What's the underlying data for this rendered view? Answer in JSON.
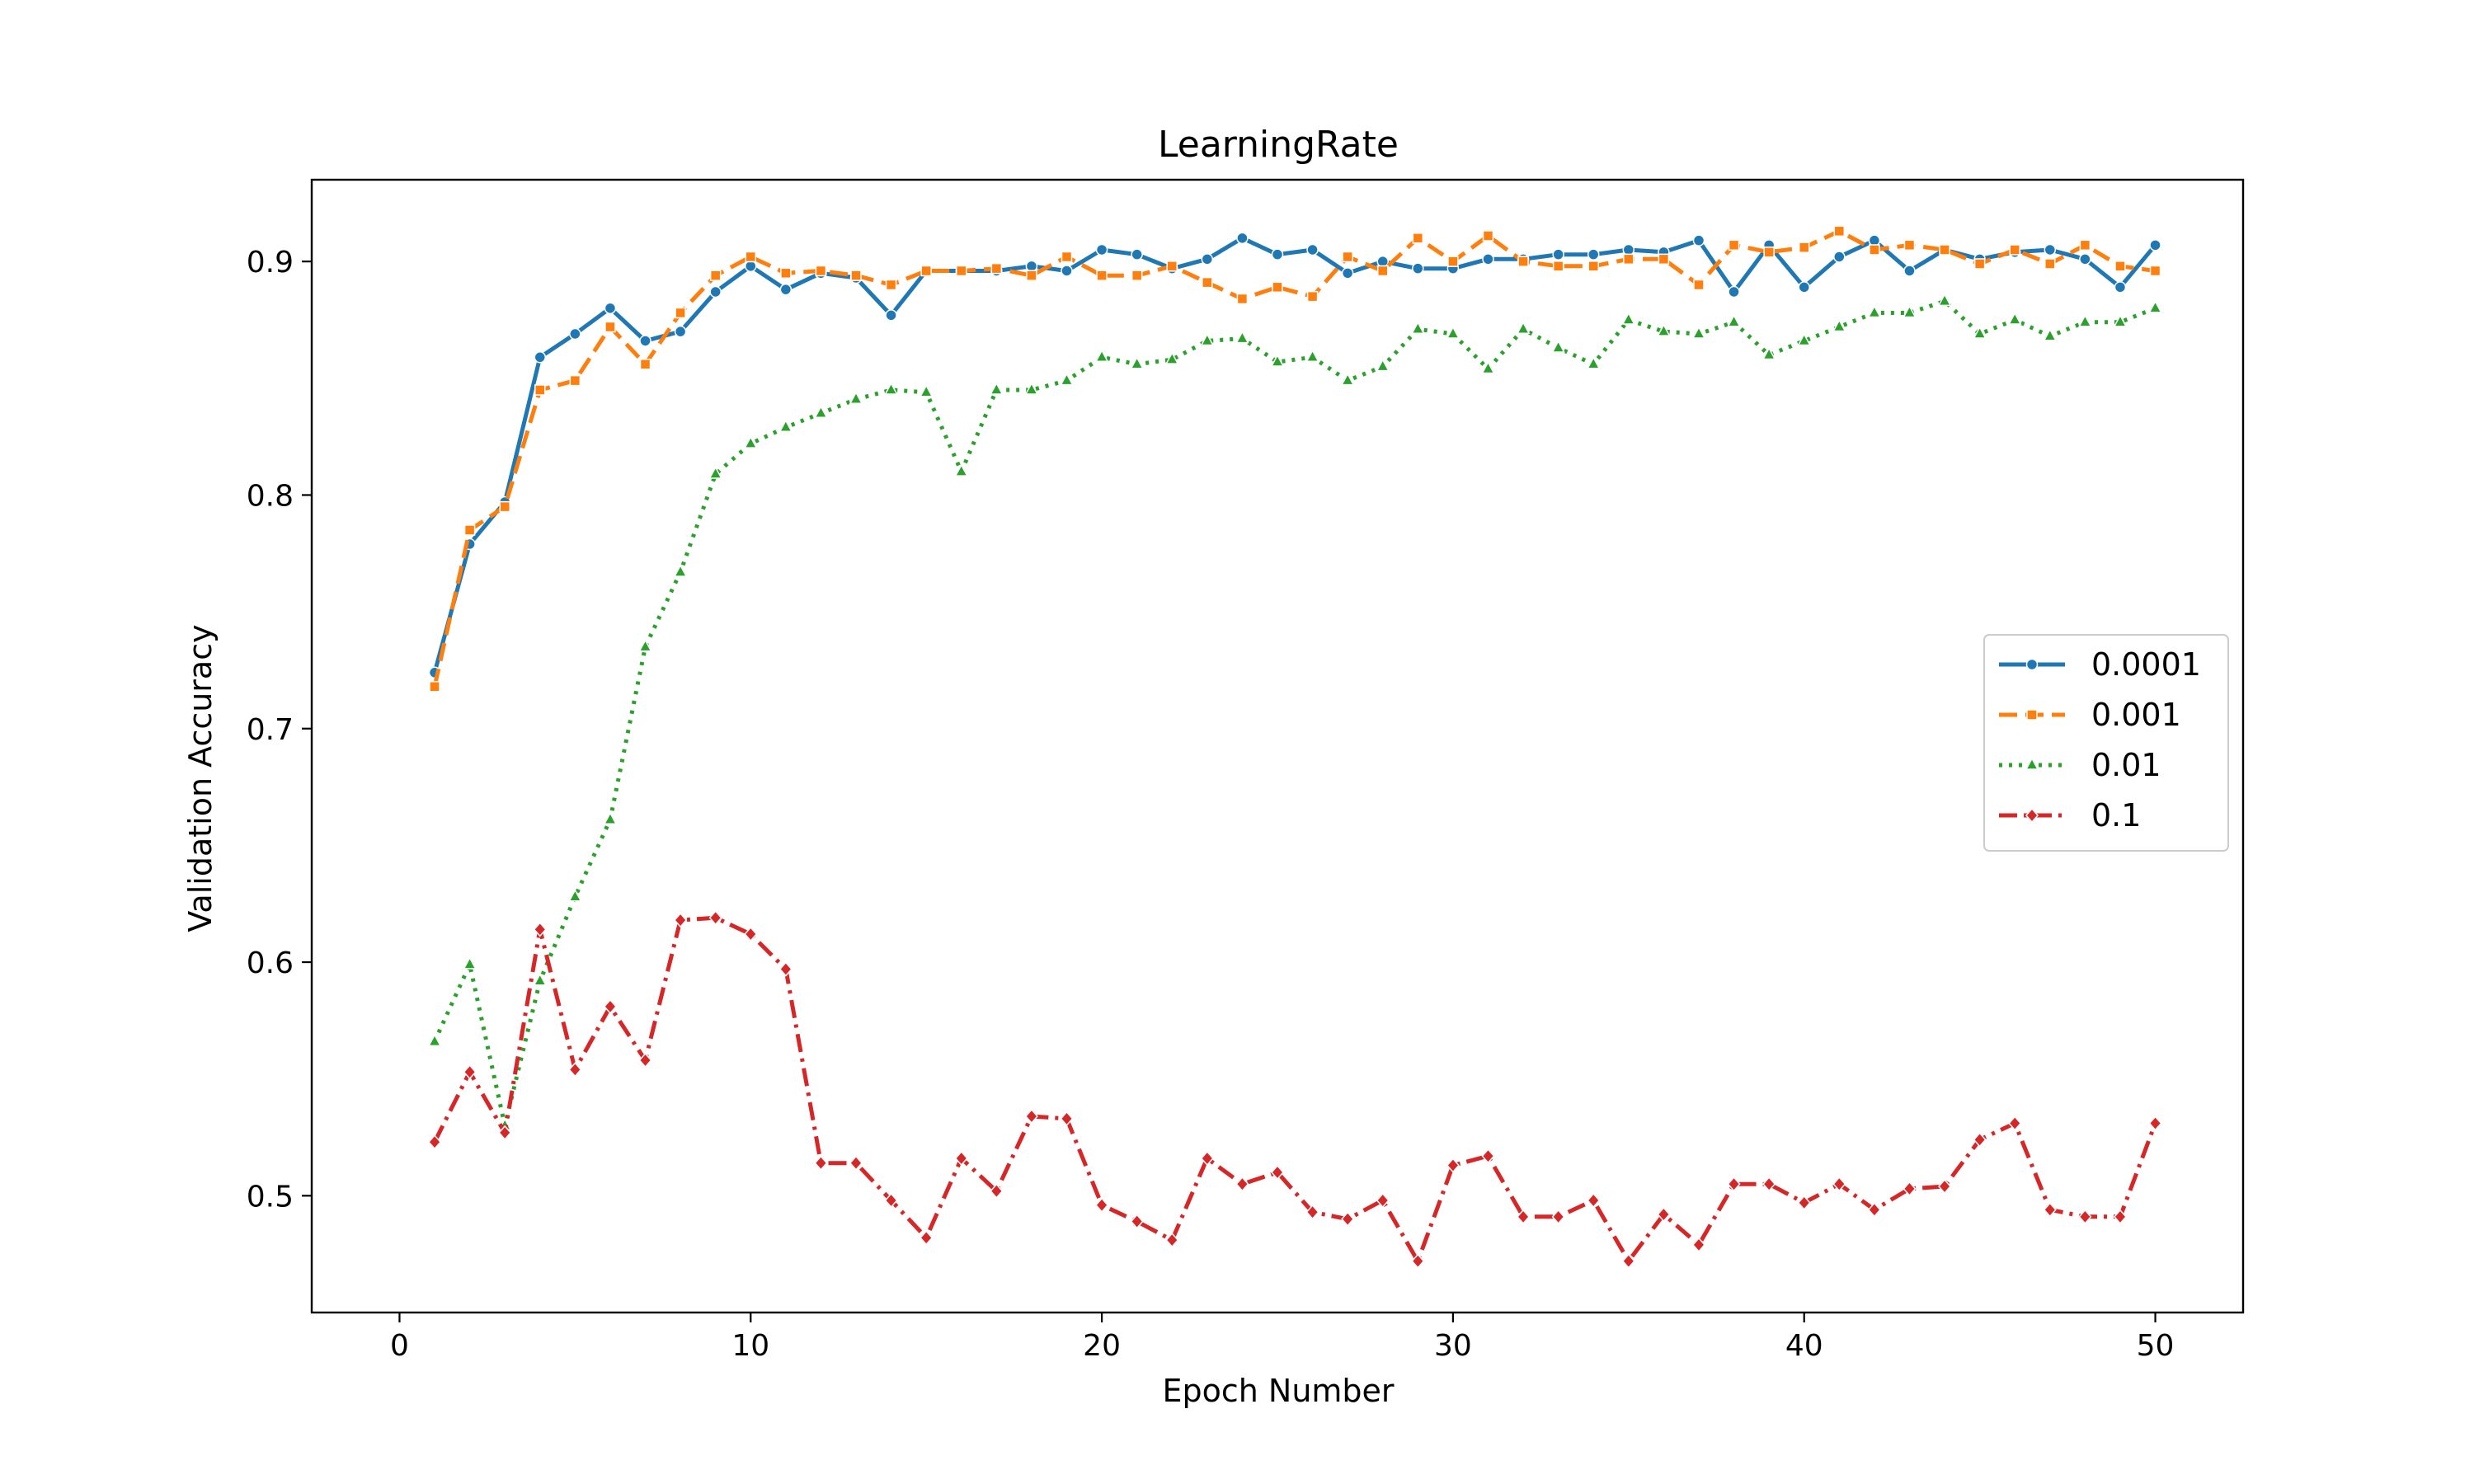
{
  "chart_data": {
    "type": "line",
    "title": "LearningRate",
    "xlabel": "Epoch Number",
    "ylabel": "Validation Accuracy",
    "xlim": [
      -2.5,
      52.5
    ],
    "ylim": [
      0.45,
      0.935
    ],
    "xticks": [
      0,
      10,
      20,
      30,
      40,
      50
    ],
    "yticks": [
      0.5,
      0.6,
      0.7,
      0.8,
      0.9
    ],
    "grid": false,
    "legend_position": "center-right",
    "x": [
      1,
      2,
      3,
      4,
      5,
      6,
      7,
      8,
      9,
      10,
      11,
      12,
      13,
      14,
      15,
      16,
      17,
      18,
      19,
      20,
      21,
      22,
      23,
      24,
      25,
      26,
      27,
      28,
      29,
      30,
      31,
      32,
      33,
      34,
      35,
      36,
      37,
      38,
      39,
      40,
      41,
      42,
      43,
      44,
      45,
      46,
      47,
      48,
      49,
      50
    ],
    "series": [
      {
        "name": "0.0001",
        "color": "#1f77b4",
        "dash": "solid",
        "marker": "circle",
        "values": [
          0.724,
          0.779,
          0.797,
          0.859,
          0.869,
          0.88,
          0.866,
          0.87,
          0.887,
          0.898,
          0.888,
          0.895,
          0.893,
          0.877,
          0.896,
          0.896,
          0.896,
          0.898,
          0.896,
          0.905,
          0.903,
          0.897,
          0.901,
          0.91,
          0.903,
          0.905,
          0.895,
          0.9,
          0.897,
          0.897,
          0.901,
          0.901,
          0.903,
          0.903,
          0.905,
          0.904,
          0.909,
          0.887,
          0.907,
          0.889,
          0.902,
          0.909,
          0.896,
          0.905,
          0.901,
          0.904,
          0.905,
          0.901,
          0.889,
          0.907
        ]
      },
      {
        "name": "0.001",
        "color": "#ff7f0e",
        "dash": "dashed",
        "marker": "square",
        "values": [
          0.718,
          0.785,
          0.795,
          0.845,
          0.849,
          0.872,
          0.856,
          0.878,
          0.894,
          0.902,
          0.895,
          0.896,
          0.894,
          0.89,
          0.896,
          0.896,
          0.897,
          0.894,
          0.902,
          0.894,
          0.894,
          0.898,
          0.891,
          0.884,
          0.889,
          0.885,
          0.902,
          0.896,
          0.91,
          0.9,
          0.911,
          0.9,
          0.898,
          0.898,
          0.901,
          0.901,
          0.89,
          0.907,
          0.904,
          0.906,
          0.913,
          0.905,
          0.907,
          0.905,
          0.899,
          0.905,
          0.899,
          0.907,
          0.898,
          0.896
        ]
      },
      {
        "name": "0.01",
        "color": "#2ca02c",
        "dash": "dotted",
        "marker": "triangle",
        "values": [
          0.566,
          0.599,
          0.53,
          0.592,
          0.628,
          0.661,
          0.735,
          0.767,
          0.809,
          0.822,
          0.829,
          0.835,
          0.841,
          0.845,
          0.844,
          0.81,
          0.845,
          0.845,
          0.849,
          0.859,
          0.856,
          0.858,
          0.866,
          0.867,
          0.857,
          0.859,
          0.849,
          0.855,
          0.871,
          0.869,
          0.854,
          0.871,
          0.863,
          0.856,
          0.875,
          0.87,
          0.869,
          0.874,
          0.86,
          0.866,
          0.872,
          0.878,
          0.878,
          0.883,
          0.869,
          0.875,
          0.868,
          0.874,
          0.874,
          0.88
        ]
      },
      {
        "name": "0.1",
        "color": "#d62728",
        "dash": "dashdot",
        "marker": "diamond",
        "values": [
          0.523,
          0.553,
          0.527,
          0.614,
          0.554,
          0.581,
          0.558,
          0.618,
          0.619,
          0.612,
          0.597,
          0.514,
          0.514,
          0.498,
          0.482,
          0.516,
          0.502,
          0.534,
          0.533,
          0.496,
          0.489,
          0.481,
          0.516,
          0.505,
          0.51,
          0.493,
          0.49,
          0.498,
          0.472,
          0.513,
          0.517,
          0.491,
          0.491,
          0.498,
          0.472,
          0.492,
          0.479,
          0.505,
          0.505,
          0.497,
          0.505,
          0.494,
          0.503,
          0.504,
          0.524,
          0.531,
          0.494,
          0.491,
          0.491,
          0.531
        ]
      }
    ]
  }
}
